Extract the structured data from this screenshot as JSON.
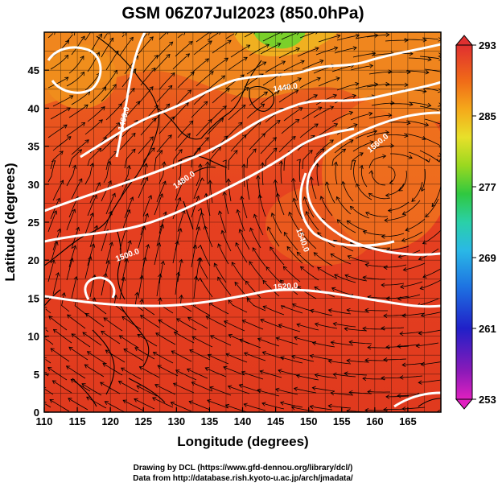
{
  "title": "GSM 06Z07Jul2023 (850.0hPa)",
  "x_axis": {
    "label": "Longitude (degrees)",
    "ticks": [
      "110",
      "115",
      "120",
      "125",
      "130",
      "135",
      "140",
      "145",
      "150",
      "155",
      "160",
      "165"
    ],
    "range": [
      110,
      170
    ]
  },
  "y_axis": {
    "label": "Latitude  (degrees)",
    "ticks": [
      "0",
      "5",
      "10",
      "15",
      "20",
      "25",
      "30",
      "35",
      "40",
      "45"
    ],
    "range": [
      0,
      50
    ]
  },
  "colorbar": {
    "ticks": [
      "253",
      "261",
      "269",
      "277",
      "285",
      "293"
    ],
    "range": [
      253,
      293
    ],
    "colors": [
      "#e020c0",
      "#6a1ab0",
      "#2020c8",
      "#1e6ae0",
      "#2ab6e6",
      "#2ad0b0",
      "#30c840",
      "#8ed820",
      "#e6e62a",
      "#f5b01a",
      "#f07a18",
      "#e84018",
      "#e03030"
    ]
  },
  "contours": [
    {
      "label": "1440.0"
    },
    {
      "label": "1460.0"
    },
    {
      "label": "1480.0"
    },
    {
      "label": "1500.0"
    },
    {
      "label": "1520.0"
    },
    {
      "label": "1540.0"
    },
    {
      "label": "1560.0"
    }
  ],
  "credits": {
    "line1": "Drawing by DCL (https://www.gfd-dennou.org/library/dcl/)",
    "line2": "Data from http://database.rish.kyoto-u.ac.jp/arch/jmadata/"
  },
  "colors": {
    "warm": "#e8401e",
    "orange": "#f08a1e",
    "yellow": "#f0c020",
    "green": "#7ad02a"
  }
}
